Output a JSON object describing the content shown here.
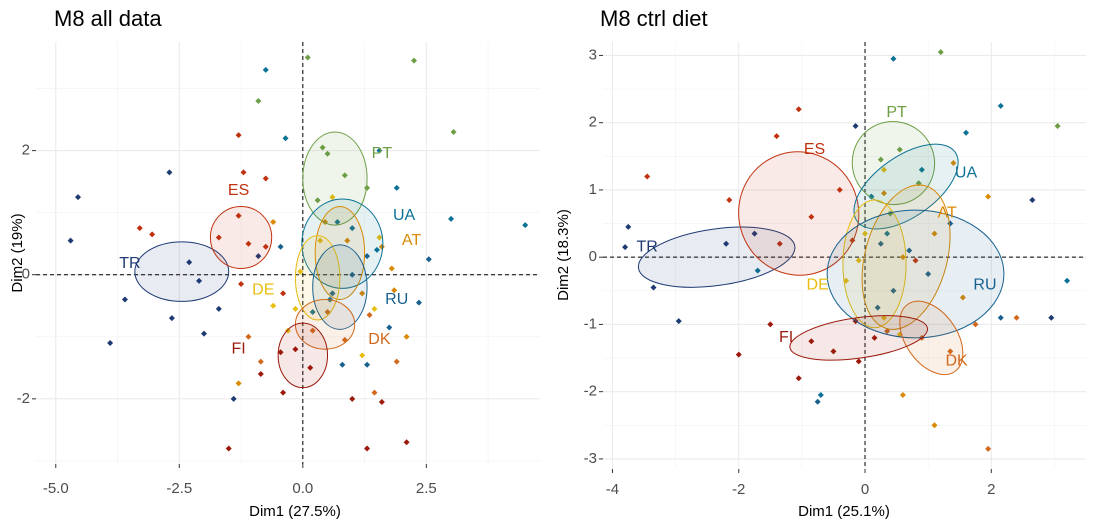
{
  "colors": {
    "TR": "#1d3a73",
    "ES": "#c0310f",
    "PT": "#6d9e45",
    "UA": "#0b7295",
    "AT": "#d98a06",
    "DE": "#e8bd10",
    "RU": "#18618f",
    "DK": "#d2691c",
    "FI": "#9c1a0c"
  },
  "chart_data": [
    {
      "type": "scatter",
      "title": "M8 all data",
      "xlabel": "Dim1 (27.5%)",
      "ylabel": "Dim2 (19%)",
      "xlim": [
        -5.4,
        4.8
      ],
      "ylim": [
        -3.05,
        3.75
      ],
      "xticks": [
        -5.0,
        -2.5,
        0.0,
        2.5
      ],
      "xtick_labels": [
        "-5.0",
        "-2.5",
        "0.0",
        "2.5"
      ],
      "yticks": [
        -2,
        0,
        2
      ],
      "ytick_labels": [
        "-2",
        "0",
        "2"
      ],
      "grid": true,
      "reference_lines": {
        "x": 0,
        "y": 0
      },
      "groups": [
        {
          "name": "TR",
          "cx": -2.45,
          "cy": 0.05,
          "rx": 0.95,
          "ry": 0.48,
          "angle": 0,
          "label_x": -3.5,
          "label_y": 0.18
        },
        {
          "name": "ES",
          "cx": -1.25,
          "cy": 0.6,
          "rx": 0.62,
          "ry": 0.5,
          "angle": 0,
          "label_x": -1.3,
          "label_y": 1.35
        },
        {
          "name": "PT",
          "cx": 0.65,
          "cy": 1.55,
          "rx": 0.65,
          "ry": 0.75,
          "angle": 0,
          "label_x": 1.6,
          "label_y": 1.95
        },
        {
          "name": "UA",
          "cx": 0.8,
          "cy": 0.5,
          "rx": 0.82,
          "ry": 0.72,
          "angle": 0,
          "label_x": 2.05,
          "label_y": 0.95
        },
        {
          "name": "AT",
          "cx": 0.75,
          "cy": 0.35,
          "rx": 0.5,
          "ry": 0.75,
          "angle": 0,
          "label_x": 2.2,
          "label_y": 0.55
        },
        {
          "name": "DE",
          "cx": 0.3,
          "cy": -0.05,
          "rx": 0.45,
          "ry": 0.68,
          "angle": 0,
          "label_x": -0.8,
          "label_y": -0.25
        },
        {
          "name": "RU",
          "cx": 0.75,
          "cy": -0.2,
          "rx": 0.55,
          "ry": 0.68,
          "angle": 0,
          "label_x": 1.9,
          "label_y": -0.4
        },
        {
          "name": "DK",
          "cx": 0.45,
          "cy": -0.8,
          "rx": 0.6,
          "ry": 0.4,
          "angle": 0,
          "label_x": 1.55,
          "label_y": -1.05
        },
        {
          "name": "FI",
          "cx": 0.0,
          "cy": -1.3,
          "rx": 0.5,
          "ry": 0.52,
          "angle": 0,
          "label_x": -1.3,
          "label_y": -1.2
        }
      ],
      "points": [
        {
          "x": -4.7,
          "y": 0.55,
          "g": "TR"
        },
        {
          "x": -4.55,
          "y": 1.25,
          "g": "TR"
        },
        {
          "x": -3.6,
          "y": -0.4,
          "g": "TR"
        },
        {
          "x": -3.9,
          "y": -1.1,
          "g": "TR"
        },
        {
          "x": -2.7,
          "y": 1.65,
          "g": "TR"
        },
        {
          "x": -2.65,
          "y": -0.7,
          "g": "TR"
        },
        {
          "x": -2.3,
          "y": 0.2,
          "g": "TR"
        },
        {
          "x": -2.1,
          "y": -0.1,
          "g": "TR"
        },
        {
          "x": -2.0,
          "y": -0.95,
          "g": "TR"
        },
        {
          "x": -1.7,
          "y": -0.55,
          "g": "TR"
        },
        {
          "x": -0.9,
          "y": 0.3,
          "g": "TR"
        },
        {
          "x": -1.4,
          "y": -2.0,
          "g": "TR"
        },
        {
          "x": -3.3,
          "y": 0.75,
          "g": "ES"
        },
        {
          "x": -3.05,
          "y": 0.65,
          "g": "ES"
        },
        {
          "x": -1.3,
          "y": 0.95,
          "g": "ES"
        },
        {
          "x": -1.1,
          "y": 0.5,
          "g": "ES"
        },
        {
          "x": -0.75,
          "y": 0.45,
          "g": "ES"
        },
        {
          "x": -1.2,
          "y": 1.65,
          "g": "ES"
        },
        {
          "x": -1.7,
          "y": 0.6,
          "g": "ES"
        },
        {
          "x": -1.25,
          "y": -0.15,
          "g": "ES"
        },
        {
          "x": -1.3,
          "y": 2.25,
          "g": "ES"
        },
        {
          "x": -0.75,
          "y": 1.55,
          "g": "ES"
        },
        {
          "x": -0.4,
          "y": -0.3,
          "g": "ES"
        },
        {
          "x": 2.25,
          "y": 3.45,
          "g": "PT"
        },
        {
          "x": 3.05,
          "y": 2.3,
          "g": "PT"
        },
        {
          "x": 0.1,
          "y": 3.5,
          "g": "PT"
        },
        {
          "x": -0.9,
          "y": 2.8,
          "g": "PT"
        },
        {
          "x": 0.5,
          "y": 1.95,
          "g": "PT"
        },
        {
          "x": 0.85,
          "y": 1.6,
          "g": "PT"
        },
        {
          "x": 0.3,
          "y": 1.2,
          "g": "PT"
        },
        {
          "x": 1.3,
          "y": 1.4,
          "g": "PT"
        },
        {
          "x": 0.4,
          "y": 2.05,
          "g": "PT"
        },
        {
          "x": -0.75,
          "y": 3.3,
          "g": "UA"
        },
        {
          "x": 4.5,
          "y": 0.8,
          "g": "UA"
        },
        {
          "x": 3.0,
          "y": 0.9,
          "g": "UA"
        },
        {
          "x": 1.9,
          "y": 1.4,
          "g": "UA"
        },
        {
          "x": 1.55,
          "y": 2.0,
          "g": "UA"
        },
        {
          "x": 1.0,
          "y": 0.75,
          "g": "UA"
        },
        {
          "x": 0.55,
          "y": -0.4,
          "g": "UA"
        },
        {
          "x": -0.35,
          "y": 2.2,
          "g": "UA"
        },
        {
          "x": 0.7,
          "y": 0.85,
          "g": "UA"
        },
        {
          "x": 1.5,
          "y": 0.4,
          "g": "UA"
        },
        {
          "x": 0.2,
          "y": -0.6,
          "g": "UA"
        },
        {
          "x": -0.6,
          "y": 0.85,
          "g": "AT"
        },
        {
          "x": 0.45,
          "y": 0.85,
          "g": "AT"
        },
        {
          "x": 0.9,
          "y": 0.55,
          "g": "AT"
        },
        {
          "x": 1.2,
          "y": -0.3,
          "g": "AT"
        },
        {
          "x": 1.6,
          "y": 0.45,
          "g": "AT"
        },
        {
          "x": 2.1,
          "y": -1.0,
          "g": "AT"
        },
        {
          "x": 1.85,
          "y": -0.25,
          "g": "AT"
        },
        {
          "x": -1.3,
          "y": -1.75,
          "g": "AT"
        },
        {
          "x": 1.8,
          "y": 0.1,
          "g": "AT"
        },
        {
          "x": 0.6,
          "y": 1.25,
          "g": "DE"
        },
        {
          "x": 0.35,
          "y": 0.55,
          "g": "DE"
        },
        {
          "x": -0.05,
          "y": 0.05,
          "g": "DE"
        },
        {
          "x": -0.15,
          "y": -0.55,
          "g": "DE"
        },
        {
          "x": 1.55,
          "y": 0.6,
          "g": "DE"
        },
        {
          "x": -0.3,
          "y": -0.9,
          "g": "DE"
        },
        {
          "x": 1.45,
          "y": -0.55,
          "g": "DE"
        },
        {
          "x": 1.2,
          "y": -1.3,
          "g": "DE"
        },
        {
          "x": -0.6,
          "y": -0.5,
          "g": "DE"
        },
        {
          "x": 1.0,
          "y": 0.0,
          "g": "RU"
        },
        {
          "x": 0.6,
          "y": -0.3,
          "g": "RU"
        },
        {
          "x": 1.75,
          "y": -0.85,
          "g": "RU"
        },
        {
          "x": 1.3,
          "y": 0.3,
          "g": "RU"
        },
        {
          "x": -0.45,
          "y": 0.45,
          "g": "RU"
        },
        {
          "x": 2.55,
          "y": 0.25,
          "g": "RU"
        },
        {
          "x": 2.35,
          "y": -0.45,
          "g": "RU"
        },
        {
          "x": 0.8,
          "y": -1.45,
          "g": "RU"
        },
        {
          "x": 1.3,
          "y": -1.45,
          "g": "RU"
        },
        {
          "x": 0.2,
          "y": -0.9,
          "g": "DK"
        },
        {
          "x": 0.85,
          "y": -1.05,
          "g": "DK"
        },
        {
          "x": 1.35,
          "y": -0.65,
          "g": "DK"
        },
        {
          "x": 1.9,
          "y": -1.4,
          "g": "DK"
        },
        {
          "x": 1.45,
          "y": -1.9,
          "g": "DK"
        },
        {
          "x": -0.85,
          "y": -1.4,
          "g": "DK"
        },
        {
          "x": -1.1,
          "y": -1.0,
          "g": "DK"
        },
        {
          "x": 0.5,
          "y": -0.6,
          "g": "DK"
        },
        {
          "x": -0.15,
          "y": -1.2,
          "g": "FI"
        },
        {
          "x": 0.15,
          "y": -1.5,
          "g": "FI"
        },
        {
          "x": -0.4,
          "y": -1.9,
          "g": "FI"
        },
        {
          "x": -0.85,
          "y": -1.6,
          "g": "FI"
        },
        {
          "x": 1.0,
          "y": -2.0,
          "g": "FI"
        },
        {
          "x": 1.6,
          "y": -2.05,
          "g": "FI"
        },
        {
          "x": 2.1,
          "y": -2.7,
          "g": "FI"
        },
        {
          "x": 1.3,
          "y": -2.8,
          "g": "FI"
        },
        {
          "x": -1.5,
          "y": -2.8,
          "g": "FI"
        },
        {
          "x": -0.45,
          "y": -1.25,
          "g": "FI"
        }
      ]
    },
    {
      "type": "scatter",
      "title": "M8 ctrl diet",
      "xlabel": "Dim1 (25.1%)",
      "ylabel": "Dim2 (18.3%)",
      "xlim": [
        -4.15,
        3.5
      ],
      "ylim": [
        -3.15,
        3.2
      ],
      "xticks": [
        -4,
        -2,
        0,
        2
      ],
      "xtick_labels": [
        "-4",
        "-2",
        "0",
        "2"
      ],
      "yticks": [
        -3,
        -2,
        -1,
        0,
        1,
        2,
        3
      ],
      "ytick_labels": [
        "-3",
        "-2",
        "-1",
        "0",
        "1",
        "2",
        "3"
      ],
      "grid": true,
      "reference_lines": {
        "x": 0,
        "y": 0
      },
      "groups": [
        {
          "name": "TR",
          "cx": -2.35,
          "cy": 0.0,
          "rx": 1.25,
          "ry": 0.42,
          "angle": -8,
          "label_x": -3.45,
          "label_y": 0.15
        },
        {
          "name": "ES",
          "cx": -1.05,
          "cy": 0.65,
          "rx": 0.95,
          "ry": 0.92,
          "angle": -15,
          "label_x": -0.8,
          "label_y": 1.6
        },
        {
          "name": "PT",
          "cx": 0.45,
          "cy": 1.4,
          "rx": 0.65,
          "ry": 0.62,
          "angle": -30,
          "label_x": 0.5,
          "label_y": 2.15
        },
        {
          "name": "UA",
          "cx": 0.65,
          "cy": 1.05,
          "rx": 0.95,
          "ry": 0.45,
          "angle": -35,
          "label_x": 1.6,
          "label_y": 1.25
        },
        {
          "name": "AT",
          "cx": 0.65,
          "cy": 0.0,
          "rx": 0.65,
          "ry": 1.1,
          "angle": 15,
          "label_x": 1.3,
          "label_y": 0.65
        },
        {
          "name": "DE",
          "cx": 0.15,
          "cy": -0.1,
          "rx": 0.5,
          "ry": 0.95,
          "angle": 0,
          "label_x": -0.75,
          "label_y": -0.42
        },
        {
          "name": "RU",
          "cx": 0.8,
          "cy": -0.25,
          "rx": 1.4,
          "ry": 0.95,
          "angle": 0,
          "label_x": 1.9,
          "label_y": -0.42
        },
        {
          "name": "DK",
          "cx": 1.05,
          "cy": -1.2,
          "rx": 0.65,
          "ry": 0.38,
          "angle": 55,
          "label_x": 1.45,
          "label_y": -1.55
        },
        {
          "name": "FI",
          "cx": -0.1,
          "cy": -1.2,
          "rx": 1.1,
          "ry": 0.3,
          "angle": -8,
          "label_x": -1.25,
          "label_y": -1.2
        }
      ],
      "points": [
        {
          "x": -3.75,
          "y": 0.45,
          "g": "TR"
        },
        {
          "x": -3.8,
          "y": 0.15,
          "g": "TR"
        },
        {
          "x": -3.35,
          "y": -0.45,
          "g": "TR"
        },
        {
          "x": -2.95,
          "y": -0.95,
          "g": "TR"
        },
        {
          "x": -2.2,
          "y": 0.2,
          "g": "TR"
        },
        {
          "x": -1.75,
          "y": 0.35,
          "g": "TR"
        },
        {
          "x": -0.15,
          "y": 1.95,
          "g": "TR"
        },
        {
          "x": 2.65,
          "y": 0.85,
          "g": "TR"
        },
        {
          "x": 2.95,
          "y": -0.9,
          "g": "TR"
        },
        {
          "x": -3.45,
          "y": 1.2,
          "g": "ES"
        },
        {
          "x": -2.15,
          "y": 0.85,
          "g": "ES"
        },
        {
          "x": -1.4,
          "y": 1.8,
          "g": "ES"
        },
        {
          "x": -1.05,
          "y": 2.2,
          "g": "ES"
        },
        {
          "x": -0.85,
          "y": 0.6,
          "g": "ES"
        },
        {
          "x": -1.35,
          "y": 0.2,
          "g": "ES"
        },
        {
          "x": -0.4,
          "y": 1.0,
          "g": "ES"
        },
        {
          "x": -0.2,
          "y": 0.25,
          "g": "ES"
        },
        {
          "x": 0.8,
          "y": -0.05,
          "g": "ES"
        },
        {
          "x": 1.2,
          "y": 3.05,
          "g": "PT"
        },
        {
          "x": 3.05,
          "y": 1.95,
          "g": "PT"
        },
        {
          "x": 0.25,
          "y": 1.45,
          "g": "PT"
        },
        {
          "x": 0.55,
          "y": 1.6,
          "g": "PT"
        },
        {
          "x": 0.85,
          "y": 1.1,
          "g": "PT"
        },
        {
          "x": 0.4,
          "y": 0.65,
          "g": "PT"
        },
        {
          "x": 0.45,
          "y": 2.95,
          "g": "UA"
        },
        {
          "x": 2.15,
          "y": 2.25,
          "g": "UA"
        },
        {
          "x": 1.6,
          "y": 1.85,
          "g": "UA"
        },
        {
          "x": 0.9,
          "y": 1.3,
          "g": "UA"
        },
        {
          "x": 0.1,
          "y": 0.9,
          "g": "UA"
        },
        {
          "x": -1.7,
          "y": -0.2,
          "g": "UA"
        },
        {
          "x": 3.2,
          "y": -0.35,
          "g": "UA"
        },
        {
          "x": 0.35,
          "y": 0.35,
          "g": "UA"
        },
        {
          "x": -0.7,
          "y": -2.05,
          "g": "UA"
        },
        {
          "x": 1.4,
          "y": 1.4,
          "g": "AT"
        },
        {
          "x": 1.95,
          "y": 0.9,
          "g": "AT"
        },
        {
          "x": 1.1,
          "y": 0.35,
          "g": "AT"
        },
        {
          "x": 0.6,
          "y": 0.0,
          "g": "AT"
        },
        {
          "x": 1.55,
          "y": -0.6,
          "g": "AT"
        },
        {
          "x": 1.1,
          "y": -2.5,
          "g": "AT"
        },
        {
          "x": 0.6,
          "y": -2.05,
          "g": "AT"
        },
        {
          "x": 0.3,
          "y": 0.95,
          "g": "AT"
        },
        {
          "x": 0.3,
          "y": 1.3,
          "g": "DE"
        },
        {
          "x": 0.0,
          "y": 0.35,
          "g": "DE"
        },
        {
          "x": -0.3,
          "y": -0.35,
          "g": "DE"
        },
        {
          "x": 0.3,
          "y": -0.9,
          "g": "DE"
        },
        {
          "x": -0.1,
          "y": -0.05,
          "g": "DE"
        },
        {
          "x": 0.55,
          "y": -1.15,
          "g": "DE"
        },
        {
          "x": 1.0,
          "y": -0.25,
          "g": "RU"
        },
        {
          "x": 0.7,
          "y": 0.1,
          "g": "RU"
        },
        {
          "x": 0.2,
          "y": -0.75,
          "g": "RU"
        },
        {
          "x": 1.35,
          "y": 0.5,
          "g": "RU"
        },
        {
          "x": 2.15,
          "y": -0.9,
          "g": "RU"
        },
        {
          "x": 0.45,
          "y": -0.5,
          "g": "RU"
        },
        {
          "x": -0.75,
          "y": -2.15,
          "g": "RU"
        },
        {
          "x": 0.25,
          "y": 0.2,
          "g": "RU"
        },
        {
          "x": 0.35,
          "y": -1.1,
          "g": "DK"
        },
        {
          "x": 0.9,
          "y": -1.2,
          "g": "DK"
        },
        {
          "x": 1.35,
          "y": -1.4,
          "g": "DK"
        },
        {
          "x": 2.4,
          "y": -0.9,
          "g": "DK"
        },
        {
          "x": 1.95,
          "y": -2.85,
          "g": "DK"
        },
        {
          "x": 1.75,
          "y": -1.0,
          "g": "DK"
        },
        {
          "x": -0.85,
          "y": -1.25,
          "g": "FI"
        },
        {
          "x": -0.5,
          "y": -1.4,
          "g": "FI"
        },
        {
          "x": 0.15,
          "y": -1.2,
          "g": "FI"
        },
        {
          "x": -1.05,
          "y": -1.8,
          "g": "FI"
        },
        {
          "x": -2.0,
          "y": -1.45,
          "g": "FI"
        },
        {
          "x": -1.5,
          "y": -1.0,
          "g": "FI"
        },
        {
          "x": -0.1,
          "y": -1.55,
          "g": "FI"
        },
        {
          "x": -0.15,
          "y": -0.95,
          "g": "FI"
        }
      ]
    }
  ]
}
